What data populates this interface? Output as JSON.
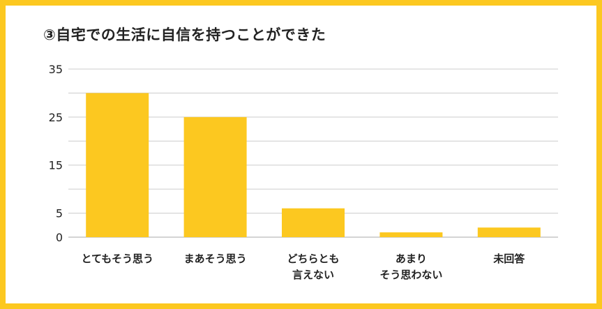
{
  "chart_data": {
    "type": "bar",
    "title": "③自宅での生活に自信を持つことができた",
    "categories": [
      [
        "とてもそう思う"
      ],
      [
        "まあそう思う"
      ],
      [
        "どちらとも",
        "言えない"
      ],
      [
        "あまり",
        "そう思わない"
      ],
      [
        "未回答"
      ]
    ],
    "values": [
      30,
      25,
      6,
      1,
      2
    ],
    "yticks": [
      0,
      5,
      15,
      25,
      35
    ],
    "ylim": [
      0,
      35
    ],
    "grid": true,
    "colors": {
      "bar": "#fcc820",
      "grid": "#cccccc",
      "frame": "#fcc820"
    }
  }
}
